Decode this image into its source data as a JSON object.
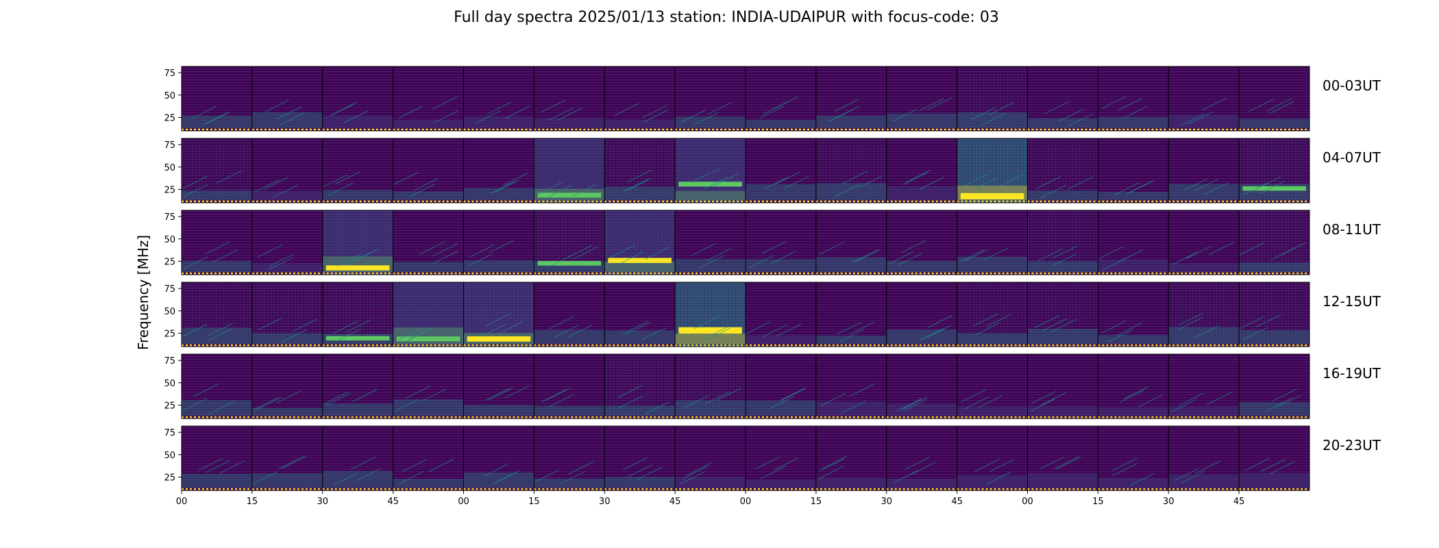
{
  "chart_data": {
    "type": "heatmap",
    "title": "Full day spectra 2025/01/13 station: INDIA-UDAIPUR with focus-code: 03",
    "ylabel": "Frequency [MHz]",
    "xlabel": "",
    "ylim": [
      10,
      82
    ],
    "y_ticks": [
      "75",
      "50",
      "25"
    ],
    "x_ticks": [
      "00",
      "15",
      "30",
      "45",
      "00",
      "15",
      "30",
      "45",
      "00",
      "15",
      "30",
      "45",
      "00",
      "15",
      "30",
      "45"
    ],
    "panels_per_row": 16,
    "colormap": [
      "#440154",
      "#3b528b",
      "#21918c",
      "#5ec962",
      "#fde725"
    ],
    "grid": false,
    "rows": [
      {
        "label": "00-03UT",
        "intensity": [
          0.25,
          0.25,
          0.22,
          0.22,
          0.18,
          0.18,
          0.18,
          0.28,
          0.3,
          0.28,
          0.3,
          0.35,
          0.3,
          0.3,
          0.22,
          0.28
        ]
      },
      {
        "label": "04-07UT",
        "intensity": [
          0.35,
          0.22,
          0.3,
          0.28,
          0.25,
          0.5,
          0.4,
          0.5,
          0.28,
          0.35,
          0.22,
          0.75,
          0.35,
          0.3,
          0.3,
          0.45
        ]
      },
      {
        "label": "08-11UT",
        "intensity": [
          0.3,
          0.22,
          0.55,
          0.28,
          0.3,
          0.45,
          0.55,
          0.25,
          0.25,
          0.25,
          0.28,
          0.3,
          0.35,
          0.22,
          0.2,
          0.4
        ]
      },
      {
        "label": "12-15UT",
        "intensity": [
          0.35,
          0.4,
          0.45,
          0.5,
          0.6,
          0.25,
          0.3,
          0.8,
          0.22,
          0.25,
          0.3,
          0.35,
          0.35,
          0.3,
          0.4,
          0.4
        ]
      },
      {
        "label": "16-19UT",
        "intensity": [
          0.3,
          0.28,
          0.28,
          0.3,
          0.25,
          0.25,
          0.4,
          0.4,
          0.25,
          0.22,
          0.22,
          0.22,
          0.22,
          0.22,
          0.22,
          0.25
        ]
      },
      {
        "label": "20-23UT",
        "intensity": [
          0.25,
          0.25,
          0.25,
          0.25,
          0.3,
          0.3,
          0.25,
          0.22,
          0.22,
          0.22,
          0.22,
          0.22,
          0.22,
          0.22,
          0.22,
          0.22
        ]
      }
    ]
  }
}
